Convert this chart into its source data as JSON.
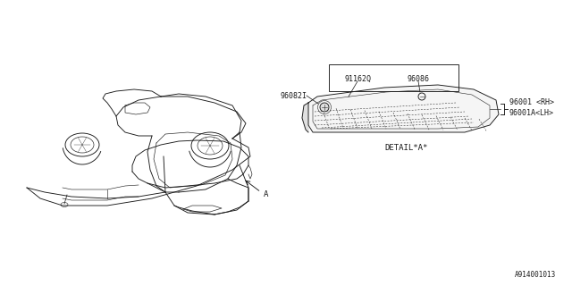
{
  "bg_color": "#ffffff",
  "line_color": "#1a1a1a",
  "fig_width": 6.4,
  "fig_height": 3.2,
  "dpi": 100,
  "diagram_id": "A914001013",
  "part_91162Q": "91162Q",
  "part_96086": "96086",
  "part_96082I": "96082I",
  "part_96001_RH": "96001 <RH>",
  "part_96001A_LH": "96001A<LH>",
  "label_A": "A",
  "detail_label": "DETAIL*A*"
}
